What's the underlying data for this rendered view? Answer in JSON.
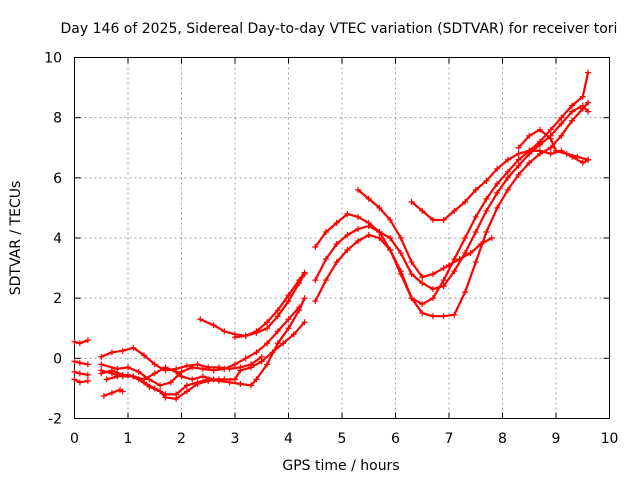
{
  "chart_data": {
    "type": "scatter",
    "title": "Day 146 of 2025, Sidereal Day-to-day VTEC variation (SDTVAR) for receiver tori",
    "xlabel": "GPS time / hours",
    "ylabel": "SDTVAR / TECUs",
    "xlim": [
      0,
      10
    ],
    "ylim": [
      -2,
      10
    ],
    "x_ticks": [
      0,
      1,
      2,
      3,
      4,
      5,
      6,
      7,
      8,
      9,
      10
    ],
    "y_ticks": [
      -2,
      0,
      2,
      4,
      6,
      8,
      10
    ],
    "x_tick_labels": [
      "0",
      "1",
      "2",
      "3",
      "4",
      "5",
      "6",
      "7",
      "8",
      "9",
      "10"
    ],
    "y_tick_labels": [
      "-2",
      "0",
      "2",
      "4",
      "6",
      "8",
      "10"
    ],
    "grid": true,
    "marker": "+",
    "color": "#ff0000",
    "series": [
      {
        "x": [
          0.0,
          0.1,
          0.25
        ],
        "y": [
          0.55,
          0.5,
          0.6
        ]
      },
      {
        "x": [
          0.0,
          0.1,
          0.25
        ],
        "y": [
          -0.1,
          -0.15,
          -0.2
        ]
      },
      {
        "x": [
          0.0,
          0.1,
          0.25
        ],
        "y": [
          -0.45,
          -0.5,
          -0.55
        ]
      },
      {
        "x": [
          0.0,
          0.1,
          0.25
        ],
        "y": [
          -0.7,
          -0.8,
          -0.75
        ]
      },
      {
        "x": [
          0.55,
          0.7,
          0.85,
          0.9
        ],
        "y": [
          -1.25,
          -1.15,
          -1.05,
          -1.1
        ]
      },
      {
        "x": [
          0.5,
          0.7,
          0.9,
          1.1,
          1.3,
          1.5,
          1.7,
          1.9,
          2.0,
          2.2,
          2.4,
          2.6,
          2.8,
          3.0,
          3.1,
          3.3,
          3.5,
          3.7,
          3.9,
          4.1,
          4.3
        ],
        "y": [
          -0.4,
          -0.5,
          -0.6,
          -0.6,
          -0.7,
          -0.5,
          -0.3,
          -0.45,
          -0.6,
          -0.7,
          -0.6,
          -0.7,
          -0.7,
          -0.7,
          -0.4,
          -0.3,
          -0.1,
          0.2,
          0.5,
          0.8,
          1.2
        ]
      },
      {
        "x": [
          0.5,
          0.8,
          1.0,
          1.2,
          1.4,
          1.6,
          1.8,
          2.0,
          2.2,
          2.4,
          2.6,
          2.8,
          3.0,
          3.2,
          3.4,
          3.6,
          3.8,
          4.0,
          4.2
        ],
        "y": [
          -0.2,
          -0.35,
          -0.3,
          -0.45,
          -0.7,
          -0.9,
          -0.8,
          -0.45,
          -0.3,
          -0.35,
          -0.4,
          -0.35,
          -0.2,
          0.0,
          0.2,
          0.5,
          0.9,
          1.3,
          1.7
        ]
      },
      {
        "x": [
          0.5,
          0.7,
          0.9,
          1.1,
          1.3,
          1.5,
          1.7,
          1.9,
          2.1,
          2.3,
          2.5,
          2.7,
          2.9,
          3.1,
          3.3,
          3.4,
          3.6,
          3.8,
          4.0,
          4.2,
          4.3
        ],
        "y": [
          -0.5,
          -0.4,
          -0.55,
          -0.6,
          -0.8,
          -1.0,
          -1.2,
          -1.2,
          -0.9,
          -0.8,
          -0.7,
          -0.75,
          -0.8,
          -0.85,
          -0.9,
          -0.7,
          -0.2,
          0.5,
          1.0,
          1.6,
          2.0
        ]
      },
      {
        "x": [
          0.5,
          0.7,
          0.9,
          1.1,
          1.3,
          1.5,
          1.7,
          1.9,
          2.1,
          2.3,
          2.5,
          2.7,
          2.9,
          3.1,
          3.3,
          3.5
        ],
        "y": [
          0.05,
          0.2,
          0.25,
          0.35,
          0.1,
          -0.2,
          -0.4,
          -0.35,
          -0.25,
          -0.2,
          -0.3,
          -0.3,
          -0.35,
          -0.3,
          -0.2,
          0.05
        ]
      },
      {
        "x": [
          0.6,
          0.8,
          1.0,
          1.2,
          1.4,
          1.6,
          1.7,
          1.9,
          2.1,
          2.3,
          2.5,
          2.7
        ],
        "y": [
          -0.7,
          -0.6,
          -0.55,
          -0.7,
          -0.95,
          -1.1,
          -1.3,
          -1.35,
          -1.1,
          -0.85,
          -0.75,
          -0.7
        ]
      },
      {
        "x": [
          2.35,
          2.6,
          2.8,
          3.0,
          3.2,
          3.4,
          3.6,
          3.8,
          4.0,
          4.2,
          4.3
        ],
        "y": [
          1.3,
          1.1,
          0.9,
          0.8,
          0.75,
          0.85,
          1.0,
          1.4,
          1.9,
          2.5,
          2.8
        ]
      },
      {
        "x": [
          3.0,
          3.2,
          3.4,
          3.6,
          3.8,
          4.0,
          4.2,
          4.3
        ],
        "y": [
          0.7,
          0.75,
          0.9,
          1.2,
          1.6,
          2.1,
          2.6,
          2.85
        ]
      },
      {
        "x": [
          4.5,
          4.7,
          4.9,
          5.1,
          5.3,
          5.5,
          5.7,
          5.9,
          6.1,
          6.3,
          6.5,
          6.7,
          6.9,
          7.1,
          7.3,
          7.5,
          7.7,
          7.9,
          8.1,
          8.3,
          8.5,
          8.7,
          8.9,
          9.1,
          9.3,
          9.5,
          9.6
        ],
        "y": [
          1.9,
          2.6,
          3.2,
          3.6,
          3.9,
          4.1,
          4.0,
          3.6,
          2.9,
          2.0,
          1.5,
          1.4,
          1.4,
          1.45,
          2.2,
          3.2,
          4.2,
          5.0,
          5.6,
          6.1,
          6.5,
          6.8,
          7.0,
          7.4,
          7.9,
          8.3,
          8.5
        ]
      },
      {
        "x": [
          4.5,
          4.7,
          4.9,
          5.1,
          5.3,
          5.5,
          5.7,
          5.9,
          6.1,
          6.3,
          6.5,
          6.7,
          6.9,
          7.1,
          7.3,
          7.5,
          7.7,
          7.9,
          8.1,
          8.3,
          8.5,
          8.7,
          8.9,
          9.1,
          9.3,
          9.5,
          9.6
        ],
        "y": [
          2.6,
          3.3,
          3.8,
          4.1,
          4.3,
          4.4,
          4.2,
          3.6,
          2.8,
          2.0,
          1.8,
          2.0,
          2.6,
          3.3,
          4.0,
          4.7,
          5.3,
          5.8,
          6.2,
          6.6,
          6.9,
          7.2,
          7.6,
          8.0,
          8.4,
          8.7,
          9.5
        ]
      },
      {
        "x": [
          4.5,
          4.7,
          4.9,
          5.1,
          5.3,
          5.5,
          5.7,
          5.9,
          6.1,
          6.3,
          6.5,
          6.7,
          6.9,
          7.1,
          7.3,
          7.5,
          7.7,
          7.9,
          8.1,
          8.3,
          8.5,
          8.7,
          8.9,
          9.1,
          9.3,
          9.5,
          9.6
        ],
        "y": [
          3.7,
          4.2,
          4.5,
          4.8,
          4.7,
          4.5,
          4.2,
          4.0,
          3.5,
          2.8,
          2.5,
          2.3,
          2.4,
          2.9,
          3.5,
          4.2,
          4.9,
          5.5,
          6.0,
          6.4,
          6.8,
          7.1,
          7.4,
          7.8,
          8.2,
          8.4,
          8.2
        ]
      },
      {
        "x": [
          5.3,
          5.5,
          5.7,
          5.9,
          6.1,
          6.3,
          6.5,
          6.7,
          6.9,
          7.0,
          7.2,
          7.4,
          7.6,
          7.8
        ],
        "y": [
          5.6,
          5.3,
          5.0,
          4.6,
          4.0,
          3.2,
          2.7,
          2.8,
          3.0,
          3.1,
          3.3,
          3.5,
          3.8,
          4.0
        ]
      },
      {
        "x": [
          6.3,
          6.5,
          6.7,
          6.9,
          7.1,
          7.3,
          7.5,
          7.7,
          7.9,
          8.1,
          8.3,
          8.5,
          8.7,
          8.9,
          9.1,
          9.3,
          9.5,
          9.6
        ],
        "y": [
          5.2,
          4.9,
          4.6,
          4.6,
          4.9,
          5.2,
          5.6,
          5.9,
          6.3,
          6.6,
          6.8,
          6.9,
          6.9,
          6.8,
          6.9,
          6.7,
          6.5,
          6.6
        ]
      },
      {
        "x": [
          8.3,
          8.5,
          8.7,
          8.9,
          9.0,
          9.2,
          9.4,
          9.6
        ],
        "y": [
          7.0,
          7.4,
          7.6,
          7.3,
          6.9,
          6.8,
          6.7,
          6.6
        ]
      }
    ]
  }
}
